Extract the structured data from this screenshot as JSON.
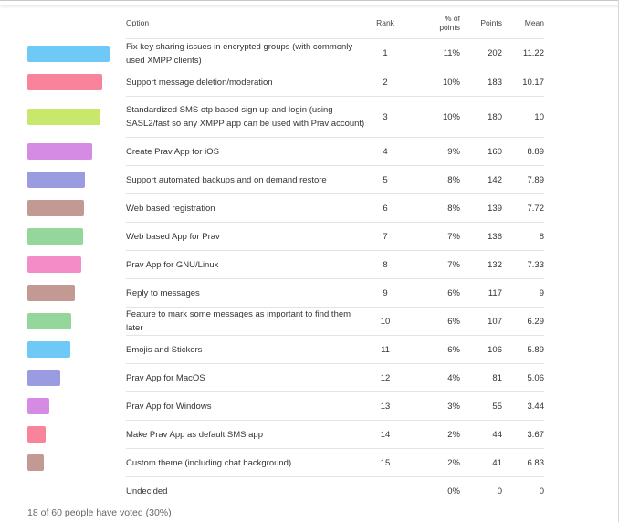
{
  "headers": {
    "option": "Option",
    "rank": "Rank",
    "pct_line1": "% of",
    "pct_line2": "points",
    "points": "Points",
    "mean": "Mean"
  },
  "rows": [
    {
      "option": "Fix key sharing issues in encrypted groups (with commonly used XMPP clients)",
      "rank": "1",
      "pct": "11%",
      "points": "202",
      "mean": "11.22",
      "bar_fraction": 1.0,
      "color": "#6ec9f7"
    },
    {
      "option": "Support message deletion/moderation",
      "rank": "2",
      "pct": "10%",
      "points": "183",
      "mean": "10.17",
      "bar_fraction": 0.906,
      "color": "#f8839b"
    },
    {
      "option": "Standardized SMS otp based sign up and login (using SASL2/fast so any XMPP app can be used with Prav account)",
      "rank": "3",
      "pct": "10%",
      "points": "180",
      "mean": "10",
      "bar_fraction": 0.891,
      "color": "#c8e86c"
    },
    {
      "option": "Create Prav App for iOS",
      "rank": "4",
      "pct": "9%",
      "points": "160",
      "mean": "8.89",
      "bar_fraction": 0.792,
      "color": "#d58be3"
    },
    {
      "option": "Support automated backups and on demand restore",
      "rank": "5",
      "pct": "8%",
      "points": "142",
      "mean": "7.89",
      "bar_fraction": 0.703,
      "color": "#9a9be0"
    },
    {
      "option": "Web based registration",
      "rank": "6",
      "pct": "8%",
      "points": "139",
      "mean": "7.72",
      "bar_fraction": 0.688,
      "color": "#c29a93"
    },
    {
      "option": "Web based App for Prav",
      "rank": "7",
      "pct": "7%",
      "points": "136",
      "mean": "8",
      "bar_fraction": 0.673,
      "color": "#95d69b"
    },
    {
      "option": "Prav App for GNU/Linux",
      "rank": "8",
      "pct": "7%",
      "points": "132",
      "mean": "7.33",
      "bar_fraction": 0.653,
      "color": "#f48cc8"
    },
    {
      "option": "Reply to messages",
      "rank": "9",
      "pct": "6%",
      "points": "117",
      "mean": "9",
      "bar_fraction": 0.579,
      "color": "#c29a93"
    },
    {
      "option": "Feature to mark some messages as important to find them later",
      "rank": "10",
      "pct": "6%",
      "points": "107",
      "mean": "6.29",
      "bar_fraction": 0.53,
      "color": "#95d69b"
    },
    {
      "option": "Emojis and Stickers",
      "rank": "11",
      "pct": "6%",
      "points": "106",
      "mean": "5.89",
      "bar_fraction": 0.525,
      "color": "#6ec9f7"
    },
    {
      "option": "Prav App for MacOS",
      "rank": "12",
      "pct": "4%",
      "points": "81",
      "mean": "5.06",
      "bar_fraction": 0.401,
      "color": "#9a9be0"
    },
    {
      "option": "Prav App for Windows",
      "rank": "13",
      "pct": "3%",
      "points": "55",
      "mean": "3.44",
      "bar_fraction": 0.272,
      "color": "#d58be3"
    },
    {
      "option": "Make Prav App as default SMS app",
      "rank": "14",
      "pct": "2%",
      "points": "44",
      "mean": "3.67",
      "bar_fraction": 0.218,
      "color": "#f8839b"
    },
    {
      "option": "Custom theme (including chat background)",
      "rank": "15",
      "pct": "2%",
      "points": "41",
      "mean": "6.83",
      "bar_fraction": 0.203,
      "color": "#c29a93"
    },
    {
      "option": "Undecided",
      "rank": "",
      "pct": "0%",
      "points": "0",
      "mean": "0",
      "bar_fraction": 0,
      "color": "#cccccc"
    }
  ],
  "footer": "18 of 60 people have voted (30%)"
}
